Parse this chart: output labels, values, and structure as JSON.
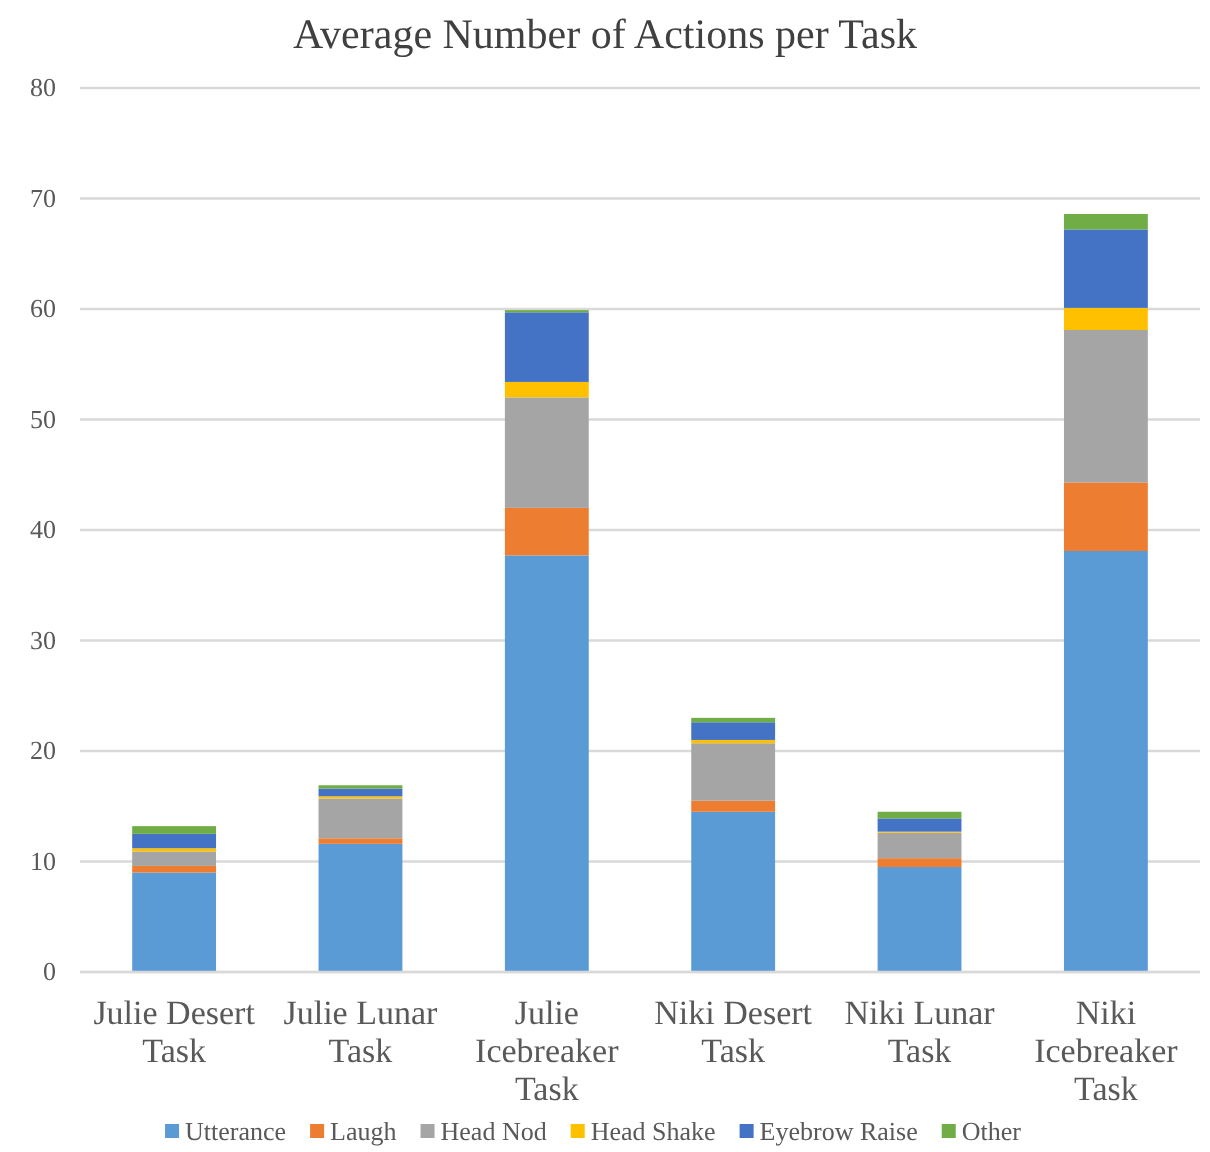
{
  "chart_data": {
    "type": "bar",
    "title": "Average Number of Actions per Task",
    "stacked": true,
    "categories": [
      "Julie Desert Task",
      "Julie Lunar Task",
      "Julie Icebreaker Task",
      "Niki Desert Task",
      "Niki Lunar Task",
      "Niki Icebreaker Task"
    ],
    "series": [
      {
        "name": "Utterance",
        "color": "#5b9bd5",
        "values": [
          9.0,
          11.6,
          37.7,
          14.5,
          9.5,
          38.1
        ]
      },
      {
        "name": "Laugh",
        "color": "#ed7d31",
        "values": [
          0.6,
          0.5,
          4.3,
          1.0,
          0.8,
          6.2
        ]
      },
      {
        "name": "Head Nod",
        "color": "#a5a5a5",
        "values": [
          1.3,
          3.6,
          10.0,
          5.2,
          2.3,
          13.8
        ]
      },
      {
        "name": "Head Shake",
        "color": "#ffc000",
        "values": [
          0.3,
          0.2,
          1.4,
          0.3,
          0.1,
          2.0
        ]
      },
      {
        "name": "Eyebrow Raise",
        "color": "#4472c4",
        "values": [
          1.3,
          0.7,
          6.3,
          1.6,
          1.2,
          7.1
        ]
      },
      {
        "name": "Other",
        "color": "#70ad47",
        "values": [
          0.7,
          0.3,
          0.2,
          0.4,
          0.6,
          1.4
        ]
      }
    ],
    "ylim": [
      0,
      80
    ],
    "yticks": [
      0,
      10,
      20,
      30,
      40,
      50,
      60,
      70,
      80
    ],
    "grid": "y",
    "legend": "bottom"
  }
}
